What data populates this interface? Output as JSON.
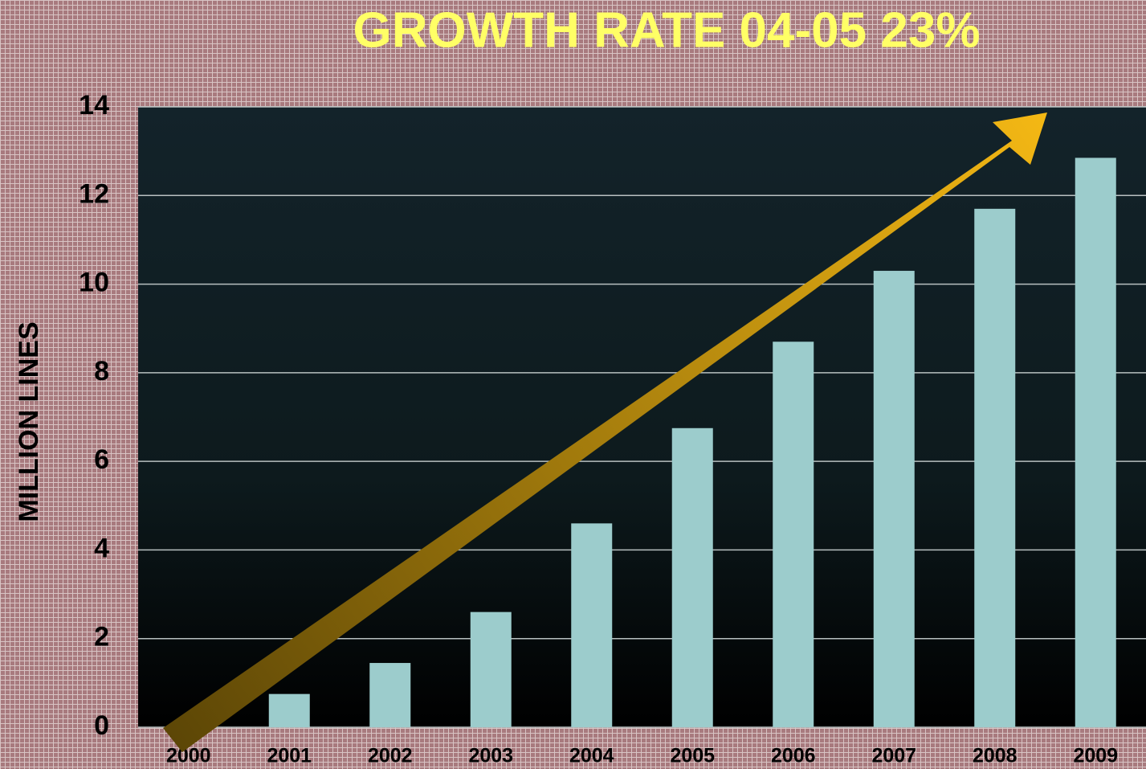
{
  "chart_data": {
    "type": "bar",
    "title": "GROWTH RATE  04-05 23%",
    "ylabel": "MILLION LINES",
    "categories": [
      "2000",
      "2001",
      "2002",
      "2003",
      "2004",
      "2005",
      "2006",
      "2007",
      "2008",
      "2009"
    ],
    "values": [
      0,
      0.75,
      1.45,
      2.6,
      4.6,
      6.75,
      8.7,
      10.3,
      11.7,
      12.85
    ],
    "color": "#9ccccc",
    "ylim": [
      0,
      14
    ],
    "yticks": [
      0,
      2,
      4,
      6,
      8,
      10,
      12,
      14
    ],
    "grid": true
  }
}
